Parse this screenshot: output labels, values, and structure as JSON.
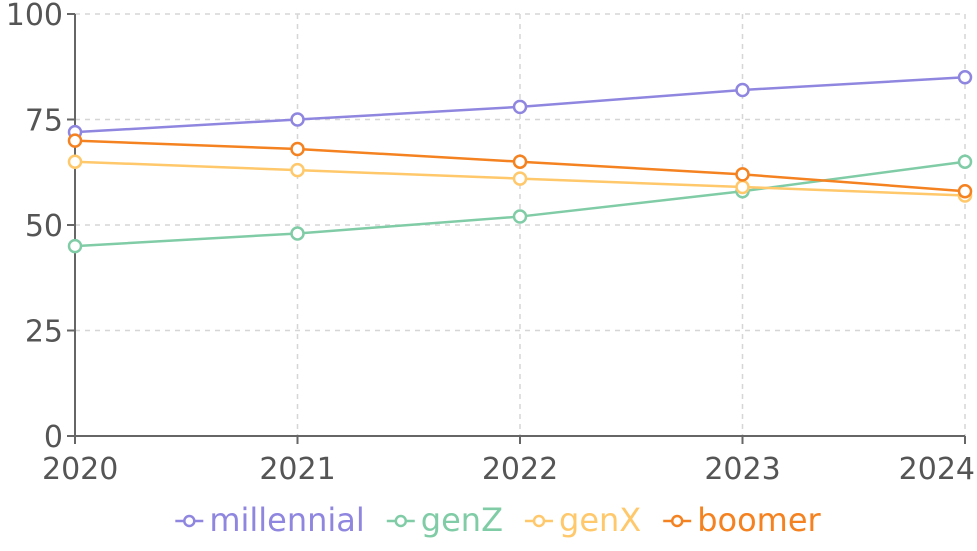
{
  "chart_data": {
    "type": "line",
    "x": [
      "2020",
      "2021",
      "2022",
      "2023",
      "2024"
    ],
    "ylim": [
      0,
      100
    ],
    "yticks": [
      "0",
      "25",
      "50",
      "75",
      "100"
    ],
    "grid": true,
    "legend_position": "bottom-center",
    "series": [
      {
        "name": "millennial",
        "color": "#8f86e0",
        "values": [
          72,
          75,
          78,
          82,
          85
        ]
      },
      {
        "name": "genZ",
        "color": "#80cca6",
        "values": [
          45,
          48,
          52,
          58,
          65
        ]
      },
      {
        "name": "genX",
        "color": "#ffc86b",
        "values": [
          65,
          63,
          61,
          59,
          57
        ]
      },
      {
        "name": "boomer",
        "color": "#f58220",
        "values": [
          70,
          68,
          65,
          62,
          58
        ]
      }
    ]
  }
}
